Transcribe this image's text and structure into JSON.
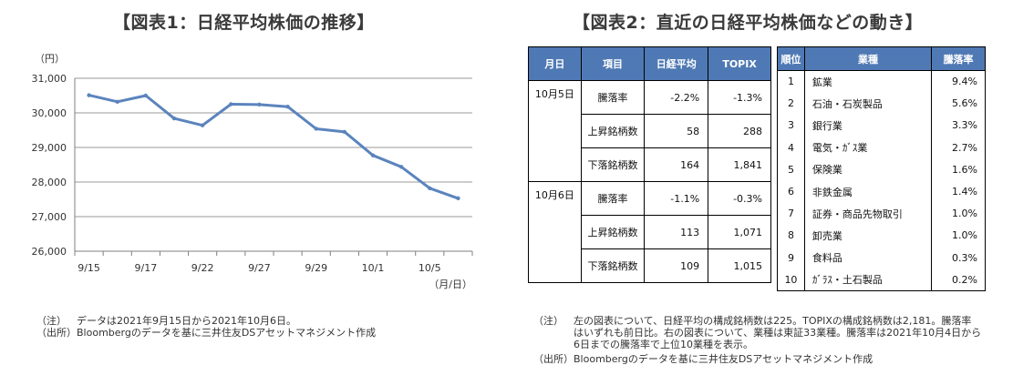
{
  "figure1": {
    "title": "【図表1：日経平均株価の推移】"
  },
  "figure2": {
    "title": "【図表2：直近の日経平均株価などの動き】"
  },
  "chart_data": {
    "type": "line",
    "title": "【図表1：日経平均株価の推移】",
    "ylabel": "（円）",
    "xlabel": "（月/日）",
    "ylim": [
      26000,
      31000
    ],
    "yticks": [
      26000,
      27000,
      28000,
      29000,
      30000,
      31000
    ],
    "ytick_labels": [
      "26,000",
      "27,000",
      "28,000",
      "29,000",
      "30,000",
      "31,000"
    ],
    "grid": true,
    "x": [
      "9/15",
      "9/16",
      "9/17",
      "9/21",
      "9/22",
      "9/24",
      "9/27",
      "9/28",
      "9/29",
      "9/30",
      "10/1",
      "10/4",
      "10/5",
      "10/6"
    ],
    "xtick_labels": [
      "9/15",
      "9/17",
      "9/22",
      "9/27",
      "9/29",
      "10/1",
      "10/5"
    ],
    "series": [
      {
        "values": [
          30510,
          30320,
          30500,
          29840,
          29640,
          30250,
          30240,
          30180,
          29540,
          29450,
          28770,
          28440,
          27820,
          27530
        ]
      }
    ],
    "line_color": "#5b84bd"
  },
  "table1": {
    "headers": [
      "月日",
      "項目",
      "日経平均",
      "TOPIX"
    ],
    "groups": [
      {
        "date": "10月5日",
        "rows": [
          {
            "item": "騰落率",
            "nikkei": "-2.2%",
            "topix": "-1.3%"
          },
          {
            "item": "上昇銘柄数",
            "nikkei": "58",
            "topix": "288"
          },
          {
            "item": "下落銘柄数",
            "nikkei": "164",
            "topix": "1,841"
          }
        ]
      },
      {
        "date": "10月6日",
        "rows": [
          {
            "item": "騰落率",
            "nikkei": "-1.1%",
            "topix": "-0.3%"
          },
          {
            "item": "上昇銘柄数",
            "nikkei": "113",
            "topix": "1,071"
          },
          {
            "item": "下落銘柄数",
            "nikkei": "109",
            "topix": "1,015"
          }
        ]
      }
    ]
  },
  "table2": {
    "headers": [
      "順位",
      "業種",
      "騰落率"
    ],
    "rows": [
      {
        "rank": "1",
        "industry": "鉱業",
        "rate": "9.4%"
      },
      {
        "rank": "2",
        "industry": "石油・石炭製品",
        "rate": "5.6%"
      },
      {
        "rank": "3",
        "industry": "銀行業",
        "rate": "3.3%"
      },
      {
        "rank": "4",
        "industry": "電気・ｶﾞｽ業",
        "rate": "2.7%"
      },
      {
        "rank": "5",
        "industry": "保険業",
        "rate": "1.6%"
      },
      {
        "rank": "6",
        "industry": "非鉄金属",
        "rate": "1.4%"
      },
      {
        "rank": "7",
        "industry": "証券・商品先物取引",
        "rate": "1.0%"
      },
      {
        "rank": "8",
        "industry": "卸売業",
        "rate": "1.0%"
      },
      {
        "rank": "9",
        "industry": "食料品",
        "rate": "0.3%"
      },
      {
        "rank": "10",
        "industry": "ｶﾞﾗｽ・土石製品",
        "rate": "0.2%"
      }
    ]
  },
  "notes_left": {
    "note_label": "（注）",
    "note_text": "データは2021年9月15日から2021年10月6日。",
    "source_label": "（出所）",
    "source_text": "Bloombergのデータを基に三井住友DSアセットマネジメント作成"
  },
  "notes_right": {
    "note_label": "（注）",
    "note_line1": "左の図表について、日経平均の構成銘柄数は225。TOPIXの構成銘柄数は2,181。騰落率",
    "note_line2": "はいずれも前日比。右の図表について、業種は東証33業種。騰落率は2021年10月4日から",
    "note_line3": "6日までの騰落率で上位10業種を表示。",
    "source_label": "（出所）",
    "source_text": "Bloombergのデータを基に三井住友DSアセットマネジメント作成"
  }
}
